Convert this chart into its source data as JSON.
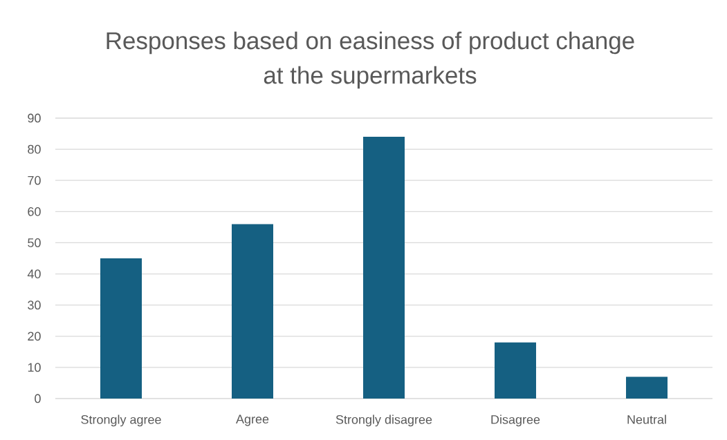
{
  "chart_data": {
    "type": "bar",
    "title": "Responses based on easiness of product change at the supermarkets",
    "categories": [
      "Strongly agree",
      "Agree",
      "Strongly disagree",
      "Disagree",
      "Neutral"
    ],
    "values": [
      45,
      56,
      84,
      18,
      7
    ],
    "color": "#156082",
    "ylim": [
      0,
      90
    ],
    "yticks": [
      0,
      10,
      20,
      30,
      40,
      50,
      60,
      70,
      80,
      90
    ],
    "grid": "y"
  }
}
